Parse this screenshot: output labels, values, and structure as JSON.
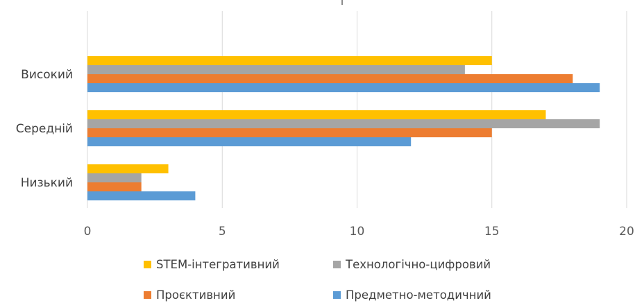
{
  "chart_data": {
    "type": "bar",
    "orientation": "horizontal",
    "categories": [
      "Низький",
      "Середній",
      "Високий"
    ],
    "series": [
      {
        "name": "Предметно-методичний",
        "color": "#5b9bd5",
        "values": [
          4,
          12,
          19
        ]
      },
      {
        "name": "Проєктивний",
        "color": "#ed7d31",
        "values": [
          2,
          15,
          18
        ]
      },
      {
        "name": "Технологічно-цифровий",
        "color": "#a5a5a5",
        "values": [
          2,
          19,
          14
        ]
      },
      {
        "name": "STEM-інтегративний",
        "color": "#ffc000",
        "values": [
          3,
          17,
          15
        ]
      }
    ],
    "xlim": [
      0,
      20
    ],
    "xticks": [
      "0",
      "5",
      "10",
      "15",
      "20"
    ],
    "grid": "vertical",
    "legend_position": "bottom",
    "title": "",
    "xlabel": "",
    "ylabel": ""
  }
}
